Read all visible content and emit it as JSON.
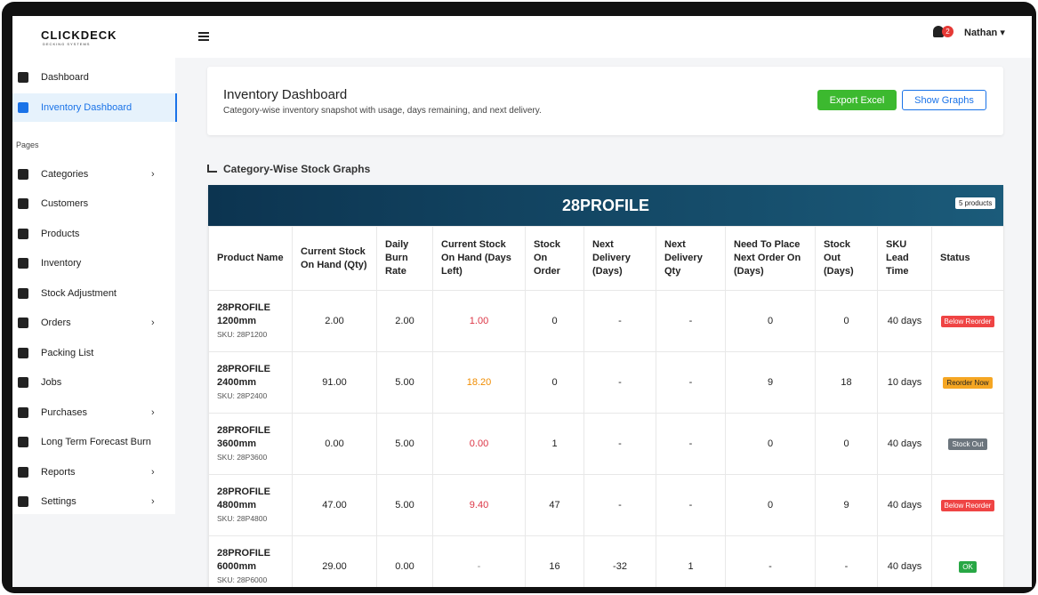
{
  "brand": {
    "name": "CLICKDECK",
    "tagline": "DECKING SYSTEMS"
  },
  "sidebar": {
    "top_items": [
      {
        "label": "Dashboard",
        "active": false
      },
      {
        "label": "Inventory Dashboard",
        "active": true
      }
    ],
    "section": "Pages",
    "pages": [
      {
        "label": "Categories",
        "submenu": true
      },
      {
        "label": "Customers",
        "submenu": false
      },
      {
        "label": "Products",
        "submenu": false
      },
      {
        "label": "Inventory",
        "submenu": false
      },
      {
        "label": "Stock Adjustment",
        "submenu": false
      },
      {
        "label": "Orders",
        "submenu": true
      },
      {
        "label": "Packing List",
        "submenu": false
      },
      {
        "label": "Jobs",
        "submenu": false
      },
      {
        "label": "Purchases",
        "submenu": true
      },
      {
        "label": "Long Term Forecast Burn",
        "submenu": false
      },
      {
        "label": "Reports",
        "submenu": true
      },
      {
        "label": "Settings",
        "submenu": true
      }
    ]
  },
  "topbar": {
    "notifications": 2,
    "user": "Nathan"
  },
  "header": {
    "title": "Inventory Dashboard",
    "subtitle": "Category-wise inventory snapshot with usage, days remaining, and next delivery.",
    "export_button": "Export Excel",
    "graphs_button": "Show Graphs"
  },
  "section_title": "Category-Wise Stock Graphs",
  "table": {
    "category": "28PROFILE",
    "badge": "5 products",
    "columns": [
      "Product Name",
      "Current Stock On Hand (Qty)",
      "Daily Burn Rate",
      "Current Stock On Hand (Days Left)",
      "Stock On Order",
      "Next Delivery (Days)",
      "Next Delivery Qty",
      "Need To Place Next Order On (Days)",
      "Stock Out (Days)",
      "SKU Lead Time",
      "Status"
    ],
    "rows": [
      {
        "name": "28PROFILE 1200mm",
        "sku": "SKU: 28P1200",
        "cells": [
          "2.00",
          "2.00",
          "1.00",
          "0",
          "-",
          "-",
          "0",
          "0",
          "40 days"
        ],
        "days_left_color": "#dc3545",
        "status": "Below Reorder",
        "status_color": "#ef4444",
        "status_text_color": "#ffffff"
      },
      {
        "name": "28PROFILE 2400mm",
        "sku": "SKU: 28P2400",
        "cells": [
          "91.00",
          "5.00",
          "18.20",
          "0",
          "-",
          "-",
          "9",
          "18",
          "10 days"
        ],
        "days_left_color": "#f08c00",
        "status": "Reorder Now",
        "status_color": "#f5a623",
        "status_text_color": "#222222"
      },
      {
        "name": "28PROFILE 3600mm",
        "sku": "SKU: 28P3600",
        "cells": [
          "0.00",
          "5.00",
          "0.00",
          "1",
          "-",
          "-",
          "0",
          "0",
          "40 days"
        ],
        "days_left_color": "#dc3545",
        "status": "Stock Out",
        "status_color": "#6c757d",
        "status_text_color": "#ffffff"
      },
      {
        "name": "28PROFILE 4800mm",
        "sku": "SKU: 28P4800",
        "cells": [
          "47.00",
          "5.00",
          "9.40",
          "47",
          "-",
          "-",
          "0",
          "9",
          "40 days"
        ],
        "days_left_color": "#dc3545",
        "status": "Below Reorder",
        "status_color": "#ef4444",
        "status_text_color": "#ffffff"
      },
      {
        "name": "28PROFILE 6000mm",
        "sku": "SKU: 28P6000",
        "cells": [
          "29.00",
          "0.00",
          "-",
          "16",
          "-32",
          "1",
          "-",
          "-",
          "40 days"
        ],
        "days_left_color": "#888888",
        "status": "OK",
        "status_color": "#28a745",
        "status_text_color": "#ffffff"
      }
    ]
  }
}
